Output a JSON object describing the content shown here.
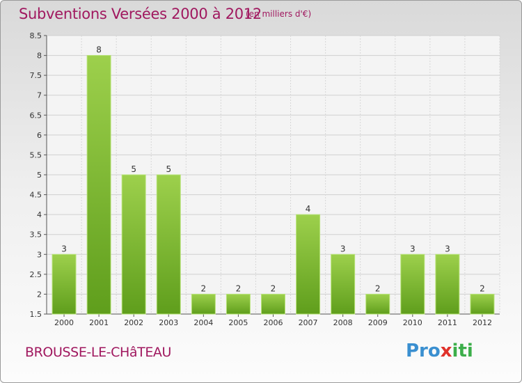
{
  "chart_data": {
    "type": "bar",
    "title": "Subventions Versées 2000 à 2012",
    "subtitle": "(en milliers d'€)",
    "categories": [
      "2000",
      "2001",
      "2002",
      "2003",
      "2004",
      "2005",
      "2006",
      "2007",
      "2008",
      "2009",
      "2010",
      "2011",
      "2012"
    ],
    "values": [
      3,
      8,
      5,
      5,
      2,
      2,
      2,
      4,
      3,
      2,
      3,
      3,
      2
    ],
    "value_labels": [
      "3",
      "8",
      "5",
      "5",
      "2",
      "2",
      "2",
      "4",
      "3",
      "2",
      "3",
      "3",
      "2"
    ],
    "ylim": [
      1.5,
      8.5
    ],
    "yticks": [
      "1.5",
      "2",
      "2.5",
      "3",
      "3.5",
      "4",
      "4.5",
      "5",
      "5.5",
      "6",
      "6.5",
      "7",
      "7.5",
      "8",
      "8.5"
    ],
    "grid": true,
    "bar_color": "#7cc03a"
  },
  "footer": {
    "place": "BROUSSE-LE-CHâTEAU",
    "logo": {
      "p1": "Pro",
      "p2": "x",
      "p3": "iti"
    }
  }
}
